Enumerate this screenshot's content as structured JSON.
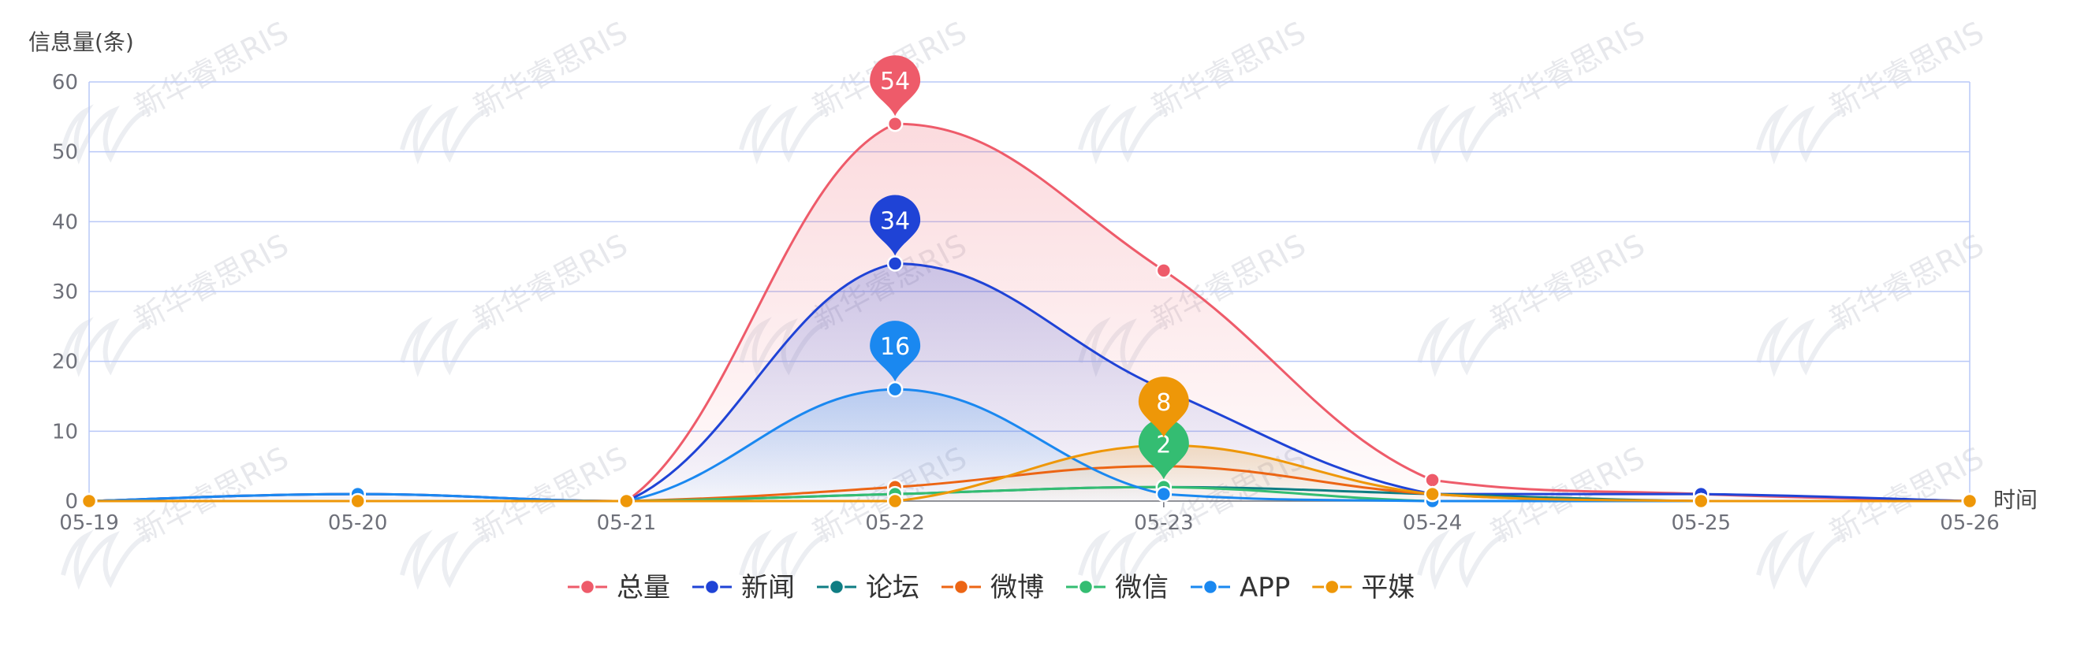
{
  "chart_data": {
    "type": "line",
    "smooth": true,
    "ylabel": "信息量(条)",
    "xlabel": "时间",
    "ylim": [
      0,
      60
    ],
    "yticks": [
      0,
      10,
      20,
      30,
      40,
      50,
      60
    ],
    "grid": true,
    "legend_position": "bottom",
    "categories": [
      "05-19",
      "05-20",
      "05-21",
      "05-22",
      "05-23",
      "05-24",
      "05-25",
      "05-26"
    ],
    "series": [
      {
        "name": "总量",
        "color": "#ee5b6a",
        "values": [
          0,
          1,
          0,
          54,
          33,
          3,
          1,
          0
        ],
        "area": true,
        "max_label": "54"
      },
      {
        "name": "新闻",
        "color": "#1f43d6",
        "values": [
          0,
          1,
          0,
          34,
          16,
          1,
          1,
          0
        ],
        "area": true,
        "max_label": "34"
      },
      {
        "name": "论坛",
        "color": "#0f7d83",
        "values": [
          0,
          0,
          0,
          1,
          2,
          1,
          0,
          0
        ],
        "area": false
      },
      {
        "name": "微博",
        "color": "#ec6514",
        "values": [
          0,
          0,
          0,
          2,
          5,
          1,
          0,
          0
        ],
        "area": false
      },
      {
        "name": "微信",
        "color": "#34bd72",
        "values": [
          0,
          0,
          0,
          1,
          2,
          0,
          0,
          0
        ],
        "area": false,
        "max_label": "2"
      },
      {
        "name": "APP",
        "color": "#1a88f0",
        "values": [
          0,
          1,
          0,
          16,
          1,
          0,
          0,
          0
        ],
        "area": true,
        "max_label": "16"
      },
      {
        "name": "平媒",
        "color": "#ee9708",
        "values": [
          0,
          0,
          0,
          0,
          8,
          1,
          0,
          0
        ],
        "area": true,
        "max_label": "8"
      }
    ]
  },
  "watermark": "新华睿思RIS"
}
